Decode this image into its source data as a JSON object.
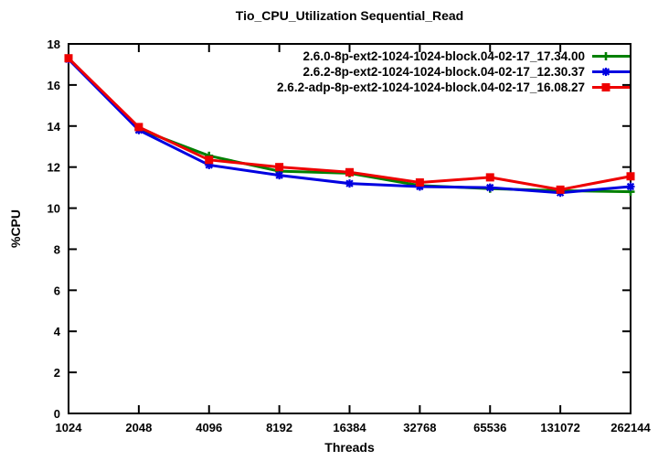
{
  "chart_data": {
    "type": "line",
    "title": "Tio_CPU_Utilization Sequential_Read",
    "xlabel": "Threads",
    "ylabel": "%CPU",
    "categories": [
      "1024",
      "2048",
      "4096",
      "8192",
      "16384",
      "32768",
      "65536",
      "131072",
      "262144"
    ],
    "x_scale": "log2, evenly spaced powers of two",
    "ylim": [
      0,
      18
    ],
    "yticks": [
      0,
      2,
      4,
      6,
      8,
      10,
      12,
      14,
      16,
      18
    ],
    "grid": false,
    "legend_position": "top-right-inside",
    "background_color": "#ffffff",
    "axis_color": "#000000",
    "series": [
      {
        "name": "2.6.0-8p-ext2-1024-1024-block.04-02-17_17.34.00",
        "color": "#008000",
        "marker": "plus",
        "values": [
          17.3,
          13.85,
          12.55,
          11.8,
          11.7,
          11.1,
          10.95,
          10.85,
          10.8
        ]
      },
      {
        "name": "2.6.2-8p-ext2-1024-1024-block.04-02-17_12.30.37",
        "color": "#0000e0",
        "marker": "asterisk",
        "values": [
          17.25,
          13.8,
          12.1,
          11.6,
          11.2,
          11.05,
          11.0,
          10.75,
          11.05
        ]
      },
      {
        "name": "2.6.2-adp-8p-ext2-1024-1024-block.04-02-17_16.08.27",
        "color": "#ee0000",
        "marker": "filled-square",
        "values": [
          17.3,
          13.95,
          12.35,
          12.0,
          11.75,
          11.25,
          11.5,
          10.9,
          11.55
        ]
      }
    ]
  }
}
